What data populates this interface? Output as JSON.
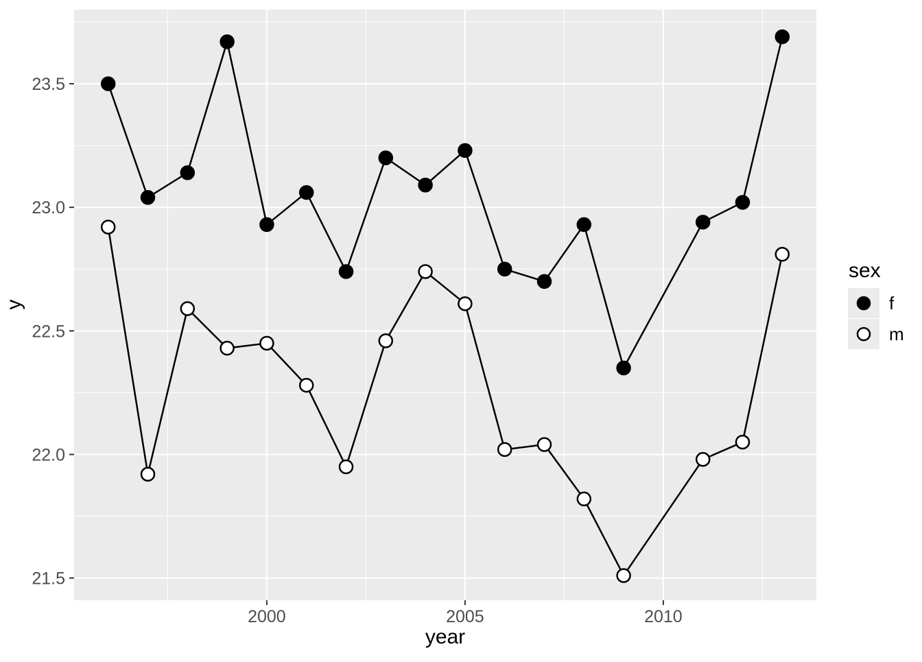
{
  "chart_data": {
    "type": "line",
    "title": "",
    "xlabel": "year",
    "ylabel": "y",
    "legend_title": "sex",
    "legend_position": "right",
    "grid": true,
    "x": [
      1996,
      1997,
      1998,
      1999,
      2000,
      2001,
      2002,
      2003,
      2004,
      2005,
      2006,
      2007,
      2008,
      2009,
      2011,
      2012,
      2013
    ],
    "series": [
      {
        "name": "f",
        "marker": "filled-circle",
        "color": "#000000",
        "values": [
          23.5,
          23.04,
          23.14,
          23.67,
          22.93,
          23.06,
          22.74,
          23.2,
          23.09,
          23.23,
          22.75,
          22.7,
          22.93,
          22.35,
          22.94,
          23.02,
          23.69
        ]
      },
      {
        "name": "m",
        "marker": "open-circle",
        "color": "#000000",
        "values": [
          22.92,
          21.92,
          22.59,
          22.43,
          22.45,
          22.28,
          21.95,
          22.46,
          22.74,
          22.61,
          22.02,
          22.04,
          21.82,
          21.51,
          21.98,
          22.05,
          22.81
        ]
      }
    ],
    "xlim": [
      1995.14,
      2013.86
    ],
    "ylim": [
      21.41,
      23.8
    ],
    "x_major_ticks": [
      2000,
      2005,
      2010
    ],
    "x_tick_labels": [
      "2000",
      "2005",
      "2010"
    ],
    "x_minor_ticks": [
      1997.5,
      2002.5,
      2007.5,
      2012.5
    ],
    "y_major_ticks": [
      21.5,
      22.0,
      22.5,
      23.0,
      23.5
    ],
    "y_tick_labels": [
      "21.5",
      "22.0",
      "22.5",
      "23.0",
      "23.5"
    ],
    "y_minor_ticks": [
      21.75,
      22.25,
      22.75,
      23.25,
      23.75
    ],
    "colors": {
      "panel_background": "#EBEBEB",
      "gridline": "#FFFFFF",
      "tick_mark": "#333333",
      "axis_text": "#4D4D4D",
      "axis_title": "#000000",
      "legend_key_background": "#EBEBEB",
      "line": "#000000"
    }
  },
  "legend": {
    "title": "sex",
    "entries": [
      {
        "label": "f",
        "marker": "filled-circle"
      },
      {
        "label": "m",
        "marker": "open-circle"
      }
    ]
  }
}
